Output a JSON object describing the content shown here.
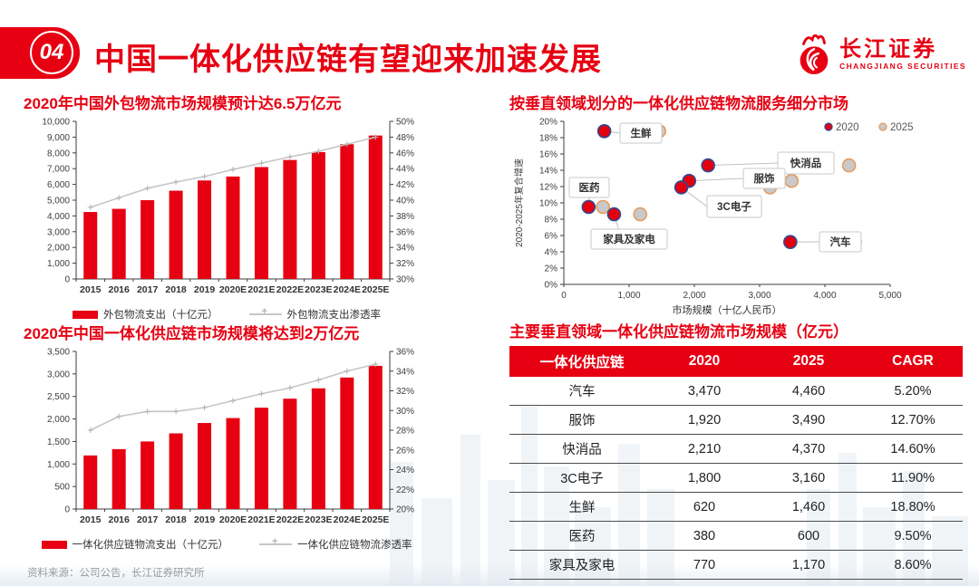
{
  "header": {
    "section_number": "04",
    "title": "中国一体化供应链有望迎来加速发展",
    "logo": {
      "name_cn": "长江证券",
      "name_en": "CHANGJIANG SECURITIES"
    }
  },
  "footer": {
    "source": "资料来源：公司公告，长江证券研究所"
  },
  "colors": {
    "brand_red": "#E60012",
    "line_gray": "#c6c6c6",
    "axis_dark": "#3d3d3d",
    "dot_2020_fill": "#E2000F",
    "dot_2020_stroke": "#2F4B93",
    "dot_2025_fill": "#C9C9C9",
    "dot_2025_stroke": "#E89A5B",
    "callout_border": "#c9c9c9",
    "table_line": "#4d4d4d"
  },
  "chart_data": [
    {
      "id": "outsourced-logistics-market",
      "type": "bar+line",
      "title": "2020年中国外包物流市场规模预计达6.5万亿元",
      "categories": [
        "2015",
        "2016",
        "2017",
        "2018",
        "2019",
        "2020E",
        "2021E",
        "2022E",
        "2023E",
        "2024E",
        "2025E"
      ],
      "series": [
        {
          "name": "外包物流支出（十亿元）",
          "type": "bar",
          "axis": "left",
          "values": [
            4250,
            4450,
            5000,
            5600,
            6250,
            6500,
            7100,
            7550,
            8050,
            8550,
            9100
          ]
        },
        {
          "name": "外包物流支出渗透率",
          "type": "line",
          "axis": "right",
          "values": [
            39.1,
            40.3,
            41.5,
            42.3,
            43.0,
            43.9,
            44.7,
            45.5,
            46.2,
            47.1,
            48.0
          ]
        }
      ],
      "left_axis": {
        "min": 0,
        "max": 10000,
        "step": 1000
      },
      "right_axis": {
        "min": 30,
        "max": 50,
        "step": 2,
        "suffix": "%"
      }
    },
    {
      "id": "integrated-supply-chain-market",
      "type": "bar+line",
      "title": "2020年中国一体化供应链市场规模将达到2万亿元",
      "categories": [
        "2015",
        "2016",
        "2017",
        "2018",
        "2019",
        "2020E",
        "2021E",
        "2022E",
        "2023E",
        "2024E",
        "2025E"
      ],
      "series": [
        {
          "name": "一体化供应链物流支出（十亿元）",
          "type": "bar",
          "axis": "left",
          "values": [
            1190,
            1330,
            1500,
            1680,
            1910,
            2020,
            2250,
            2450,
            2680,
            2920,
            3180
          ]
        },
        {
          "name": "一体化供应链物流渗透率",
          "type": "line",
          "axis": "right",
          "values": [
            28.0,
            29.4,
            29.9,
            29.9,
            30.3,
            31.0,
            31.7,
            32.3,
            33.1,
            34.0,
            34.7
          ]
        }
      ],
      "left_axis": {
        "min": 0,
        "max": 3500,
        "step": 500
      },
      "right_axis": {
        "min": 20,
        "max": 36,
        "step": 2,
        "suffix": "%"
      }
    },
    {
      "id": "vertical-segments-scatter",
      "type": "scatter",
      "title": "按垂直领域划分的一体化供应链物流服务细分市场",
      "xlabel": "市场规模（十亿人民币）",
      "ylabel": "2020-2025年复合增速",
      "x_axis": {
        "min": 0,
        "max": 5000,
        "step": 1000
      },
      "y_axis": {
        "min": 0,
        "max": 20,
        "step": 2,
        "suffix": "%"
      },
      "legend": [
        "2020",
        "2025"
      ],
      "points": [
        {
          "label": "生鲜",
          "x2020": 620,
          "x2025": 1460,
          "cagr": 18.8
        },
        {
          "label": "快消品",
          "x2020": 2210,
          "x2025": 4370,
          "cagr": 14.6
        },
        {
          "label": "服饰",
          "x2020": 1920,
          "x2025": 3490,
          "cagr": 12.7
        },
        {
          "label": "3C电子",
          "x2020": 1800,
          "x2025": 3160,
          "cagr": 11.9
        },
        {
          "label": "医药",
          "x2020": 380,
          "x2025": 600,
          "cagr": 9.5
        },
        {
          "label": "家具及家电",
          "x2020": 770,
          "x2025": 1170,
          "cagr": 8.6
        },
        {
          "label": "汽车",
          "x2020": 3470,
          "x2025": 4460,
          "cagr": 5.2
        }
      ]
    }
  ],
  "table": {
    "title": "主要垂直领域一体化供应链物流市场规模（亿元）",
    "headers": [
      "一体化供应链",
      "2020",
      "2025",
      "CAGR"
    ],
    "rows": [
      [
        "汽车",
        "3,470",
        "4,460",
        "5.20%"
      ],
      [
        "服饰",
        "1,920",
        "3,490",
        "12.70%"
      ],
      [
        "快消品",
        "2,210",
        "4,370",
        "14.60%"
      ],
      [
        "3C电子",
        "1,800",
        "3,160",
        "11.90%"
      ],
      [
        "生鲜",
        "620",
        "1,460",
        "18.80%"
      ],
      [
        "医药",
        "380",
        "600",
        "9.50%"
      ],
      [
        "家具及家电",
        "770",
        "1,170",
        "8.60%"
      ]
    ]
  }
}
